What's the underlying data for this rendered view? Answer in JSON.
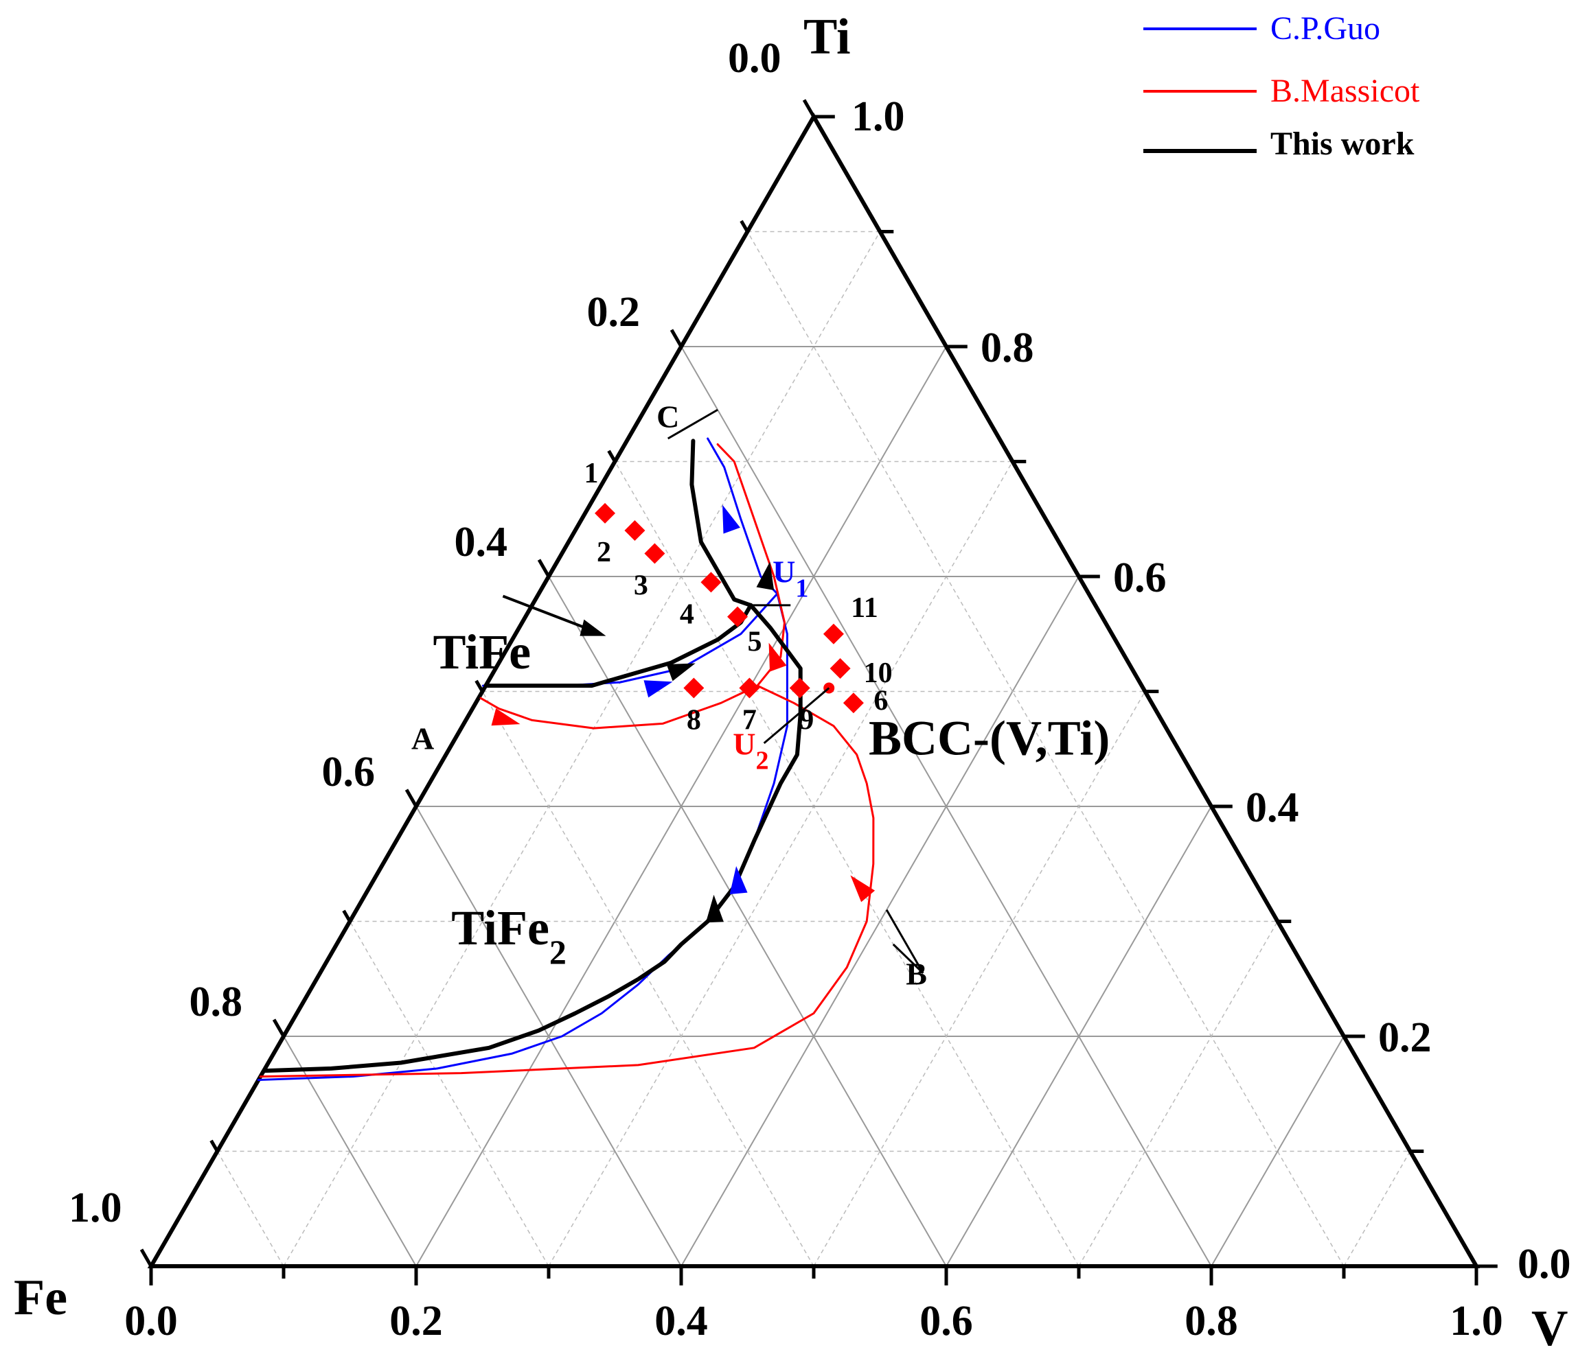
{
  "chart_data": {
    "type": "ternary",
    "title": "",
    "axes": {
      "top": {
        "label": "Ti",
        "start_label": "0.0",
        "end_label": "1.0"
      },
      "left": {
        "label": "Fe",
        "end_label": "1.0"
      },
      "bottom": {
        "label": "V",
        "start_label": "0.0",
        "end_label": "1.0"
      }
    },
    "bottom_ticks": [
      "0.0",
      "0.2",
      "0.4",
      "0.6",
      "0.8",
      "1.0"
    ],
    "right_ticks": [
      "0.2",
      "0.4",
      "0.6",
      "0.8"
    ],
    "left_ticks": [
      "0.2",
      "0.4",
      "0.6",
      "0.8"
    ],
    "corner_extra_labels": {
      "right_bottom": "0.0"
    },
    "legend": [
      {
        "name": "C.P.Guo",
        "color": "#0000ff"
      },
      {
        "name": "B.Massicot",
        "color": "#ff0000"
      },
      {
        "name": "This work",
        "color": "#000000"
      }
    ],
    "regions": [
      {
        "name": "TiFe",
        "ti": 0.52,
        "v": 0.0
      },
      {
        "name": "TiFe2",
        "ti": 0.28,
        "v": 0.13
      },
      {
        "name": "BCC-(V,Ti)",
        "ti": 0.445,
        "v": 0.41
      }
    ],
    "point_labels": [
      {
        "text": "A",
        "ti": 0.45,
        "v": -0.02
      },
      {
        "text": "B",
        "ti": 0.245,
        "v": 0.455
      },
      {
        "text": "C",
        "ti": 0.73,
        "v": 0.025
      },
      {
        "text": "U",
        "sub": "1",
        "color": "#0000ff",
        "ti": 0.595,
        "v": 0.185
      },
      {
        "text": "U",
        "sub": "2",
        "color": "#ff0000",
        "ti": 0.445,
        "v": 0.23
      }
    ],
    "curves": {
      "this_work": [
        [
          [
            0.505,
            0.0
          ],
          [
            0.505,
            0.08
          ],
          [
            0.525,
            0.13
          ],
          [
            0.545,
            0.155
          ],
          [
            0.56,
            0.165
          ],
          [
            0.575,
            0.165
          ]
        ],
        [
          [
            0.575,
            0.165
          ],
          [
            0.575,
            0.165
          ]
        ],
        [
          [
            0.575,
            0.165
          ],
          [
            0.58,
            0.15
          ],
          [
            0.63,
            0.1
          ],
          [
            0.68,
            0.068
          ],
          [
            0.718,
            0.05
          ]
        ],
        [
          [
            0.575,
            0.165
          ],
          [
            0.555,
            0.19
          ],
          [
            0.52,
            0.23
          ],
          [
            0.48,
            0.25
          ],
          [
            0.445,
            0.265
          ],
          [
            0.42,
            0.265
          ],
          [
            0.37,
            0.27
          ],
          [
            0.33,
            0.275
          ],
          [
            0.3,
            0.27
          ],
          [
            0.28,
            0.26
          ],
          [
            0.265,
            0.255
          ],
          [
            0.25,
            0.243
          ],
          [
            0.235,
            0.228
          ],
          [
            0.22,
            0.21
          ],
          [
            0.205,
            0.19
          ],
          [
            0.19,
            0.16
          ],
          [
            0.177,
            0.1
          ],
          [
            0.172,
            0.05
          ],
          [
            0.17,
            0.0
          ]
        ]
      ],
      "guo": [
        [
          [
            0.505,
            -0.002
          ],
          [
            0.505,
            0.06
          ],
          [
            0.508,
            0.1
          ],
          [
            0.52,
            0.14
          ],
          [
            0.55,
            0.17
          ],
          [
            0.585,
            0.18
          ]
        ],
        [
          [
            0.585,
            0.18
          ],
          [
            0.6,
            0.16
          ],
          [
            0.65,
            0.12
          ],
          [
            0.695,
            0.085
          ],
          [
            0.72,
            0.06
          ]
        ],
        [
          [
            0.585,
            0.18
          ],
          [
            0.55,
            0.205
          ],
          [
            0.51,
            0.225
          ],
          [
            0.47,
            0.245
          ],
          [
            0.42,
            0.26
          ],
          [
            0.37,
            0.27
          ],
          [
            0.33,
            0.275
          ],
          [
            0.3,
            0.27
          ],
          [
            0.27,
            0.255
          ],
          [
            0.245,
            0.245
          ],
          [
            0.22,
            0.23
          ],
          [
            0.2,
            0.21
          ],
          [
            0.185,
            0.18
          ],
          [
            0.172,
            0.13
          ],
          [
            0.165,
            0.07
          ],
          [
            0.162,
            0.0
          ]
        ]
      ],
      "massicot": [
        [
          [
            0.495,
            0.0
          ],
          [
            0.485,
            0.02
          ],
          [
            0.475,
            0.05
          ],
          [
            0.468,
            0.1
          ],
          [
            0.472,
            0.15
          ],
          [
            0.49,
            0.185
          ],
          [
            0.505,
            0.205
          ]
        ],
        [
          [
            0.505,
            0.205
          ],
          [
            0.53,
            0.21
          ],
          [
            0.56,
            0.198
          ],
          [
            0.6,
            0.17
          ],
          [
            0.65,
            0.13
          ],
          [
            0.7,
            0.09
          ],
          [
            0.715,
            0.07
          ]
        ],
        [
          [
            0.505,
            0.205
          ],
          [
            0.49,
            0.24
          ],
          [
            0.47,
            0.28
          ],
          [
            0.445,
            0.31
          ],
          [
            0.42,
            0.33
          ],
          [
            0.39,
            0.35
          ],
          [
            0.35,
            0.37
          ],
          [
            0.3,
            0.39
          ],
          [
            0.26,
            0.395
          ],
          [
            0.22,
            0.39
          ],
          [
            0.19,
            0.36
          ],
          [
            0.175,
            0.28
          ],
          [
            0.168,
            0.15
          ],
          [
            0.165,
            0.0
          ]
        ]
      ]
    },
    "data_points": [
      {
        "label": "1",
        "ti": 0.655,
        "v": 0.015
      },
      {
        "label": "2",
        "ti": 0.64,
        "v": 0.045
      },
      {
        "label": "3",
        "ti": 0.62,
        "v": 0.07
      },
      {
        "label": "4",
        "ti": 0.595,
        "v": 0.125
      },
      {
        "label": "5",
        "ti": 0.565,
        "v": 0.16
      },
      {
        "label": "6",
        "ti": 0.49,
        "v": 0.285
      },
      {
        "label": "7",
        "ti": 0.503,
        "v": 0.2
      },
      {
        "label": "8",
        "ti": 0.503,
        "v": 0.158
      },
      {
        "label": "9",
        "ti": 0.503,
        "v": 0.238
      },
      {
        "label": "10",
        "ti": 0.52,
        "v": 0.26
      },
      {
        "label": "11",
        "ti": 0.55,
        "v": 0.24
      }
    ],
    "u2_marker": {
      "ti": 0.503,
      "v": 0.26
    }
  }
}
